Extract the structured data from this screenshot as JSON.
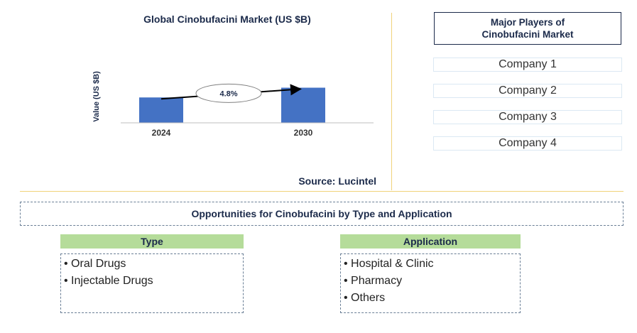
{
  "chart_data": {
    "type": "bar",
    "title": "Global Cinobufacini Market (US $B)",
    "ylabel": "Value (US $B)",
    "xlabel": "",
    "categories": [
      "2024",
      "2030"
    ],
    "values": [
      0.65,
      0.9
    ],
    "ylim": [
      0,
      1.0
    ],
    "grid": false,
    "bar_color": "#4472c4",
    "annotation": "4.8%",
    "source": "Source: Lucintel"
  },
  "players": {
    "title_line1": "Major Players of",
    "title_line2": "Cinobufacini Market",
    "companies": [
      "Company 1",
      "Company 2",
      "Company 3",
      "Company 4"
    ]
  },
  "opportunities": {
    "title": "Opportunities for Cinobufacini by Type and Application",
    "type_header": "Type",
    "type_items": [
      "• Oral Drugs",
      "• Injectable Drugs"
    ],
    "application_header": "Application",
    "application_items": [
      "• Hospital & Clinic",
      "• Pharmacy",
      "• Others"
    ],
    "header_color": "#b5dc9a"
  }
}
